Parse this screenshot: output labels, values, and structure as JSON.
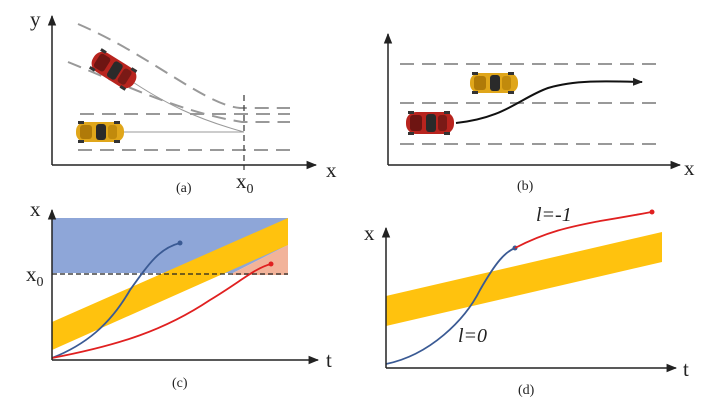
{
  "panels": {
    "a": {
      "caption": "(a)",
      "x_axis": "x",
      "y_axis": "y",
      "marker_base": "x",
      "marker_sub": "0"
    },
    "b": {
      "caption": "(b)",
      "x_axis": "x"
    },
    "c": {
      "caption": "(c)",
      "x_axis": "t",
      "y_axis": "x",
      "threshold_base": "x",
      "threshold_sub": "0"
    },
    "d": {
      "caption": "(d)",
      "x_axis": "t",
      "y_axis": "x",
      "label_left": "l=0",
      "label_right": "l=-1"
    }
  },
  "colors": {
    "blue_region": "#8ea6d8",
    "orange_band": "#ffc20e",
    "salmon_region": "#f2b39a",
    "blue_curve": "#3a5a94",
    "red_curve": "#e02020",
    "lane_line": "#999999",
    "axis": "#222222",
    "car_red": "#b8241e",
    "car_yellow": "#e0a61a"
  }
}
